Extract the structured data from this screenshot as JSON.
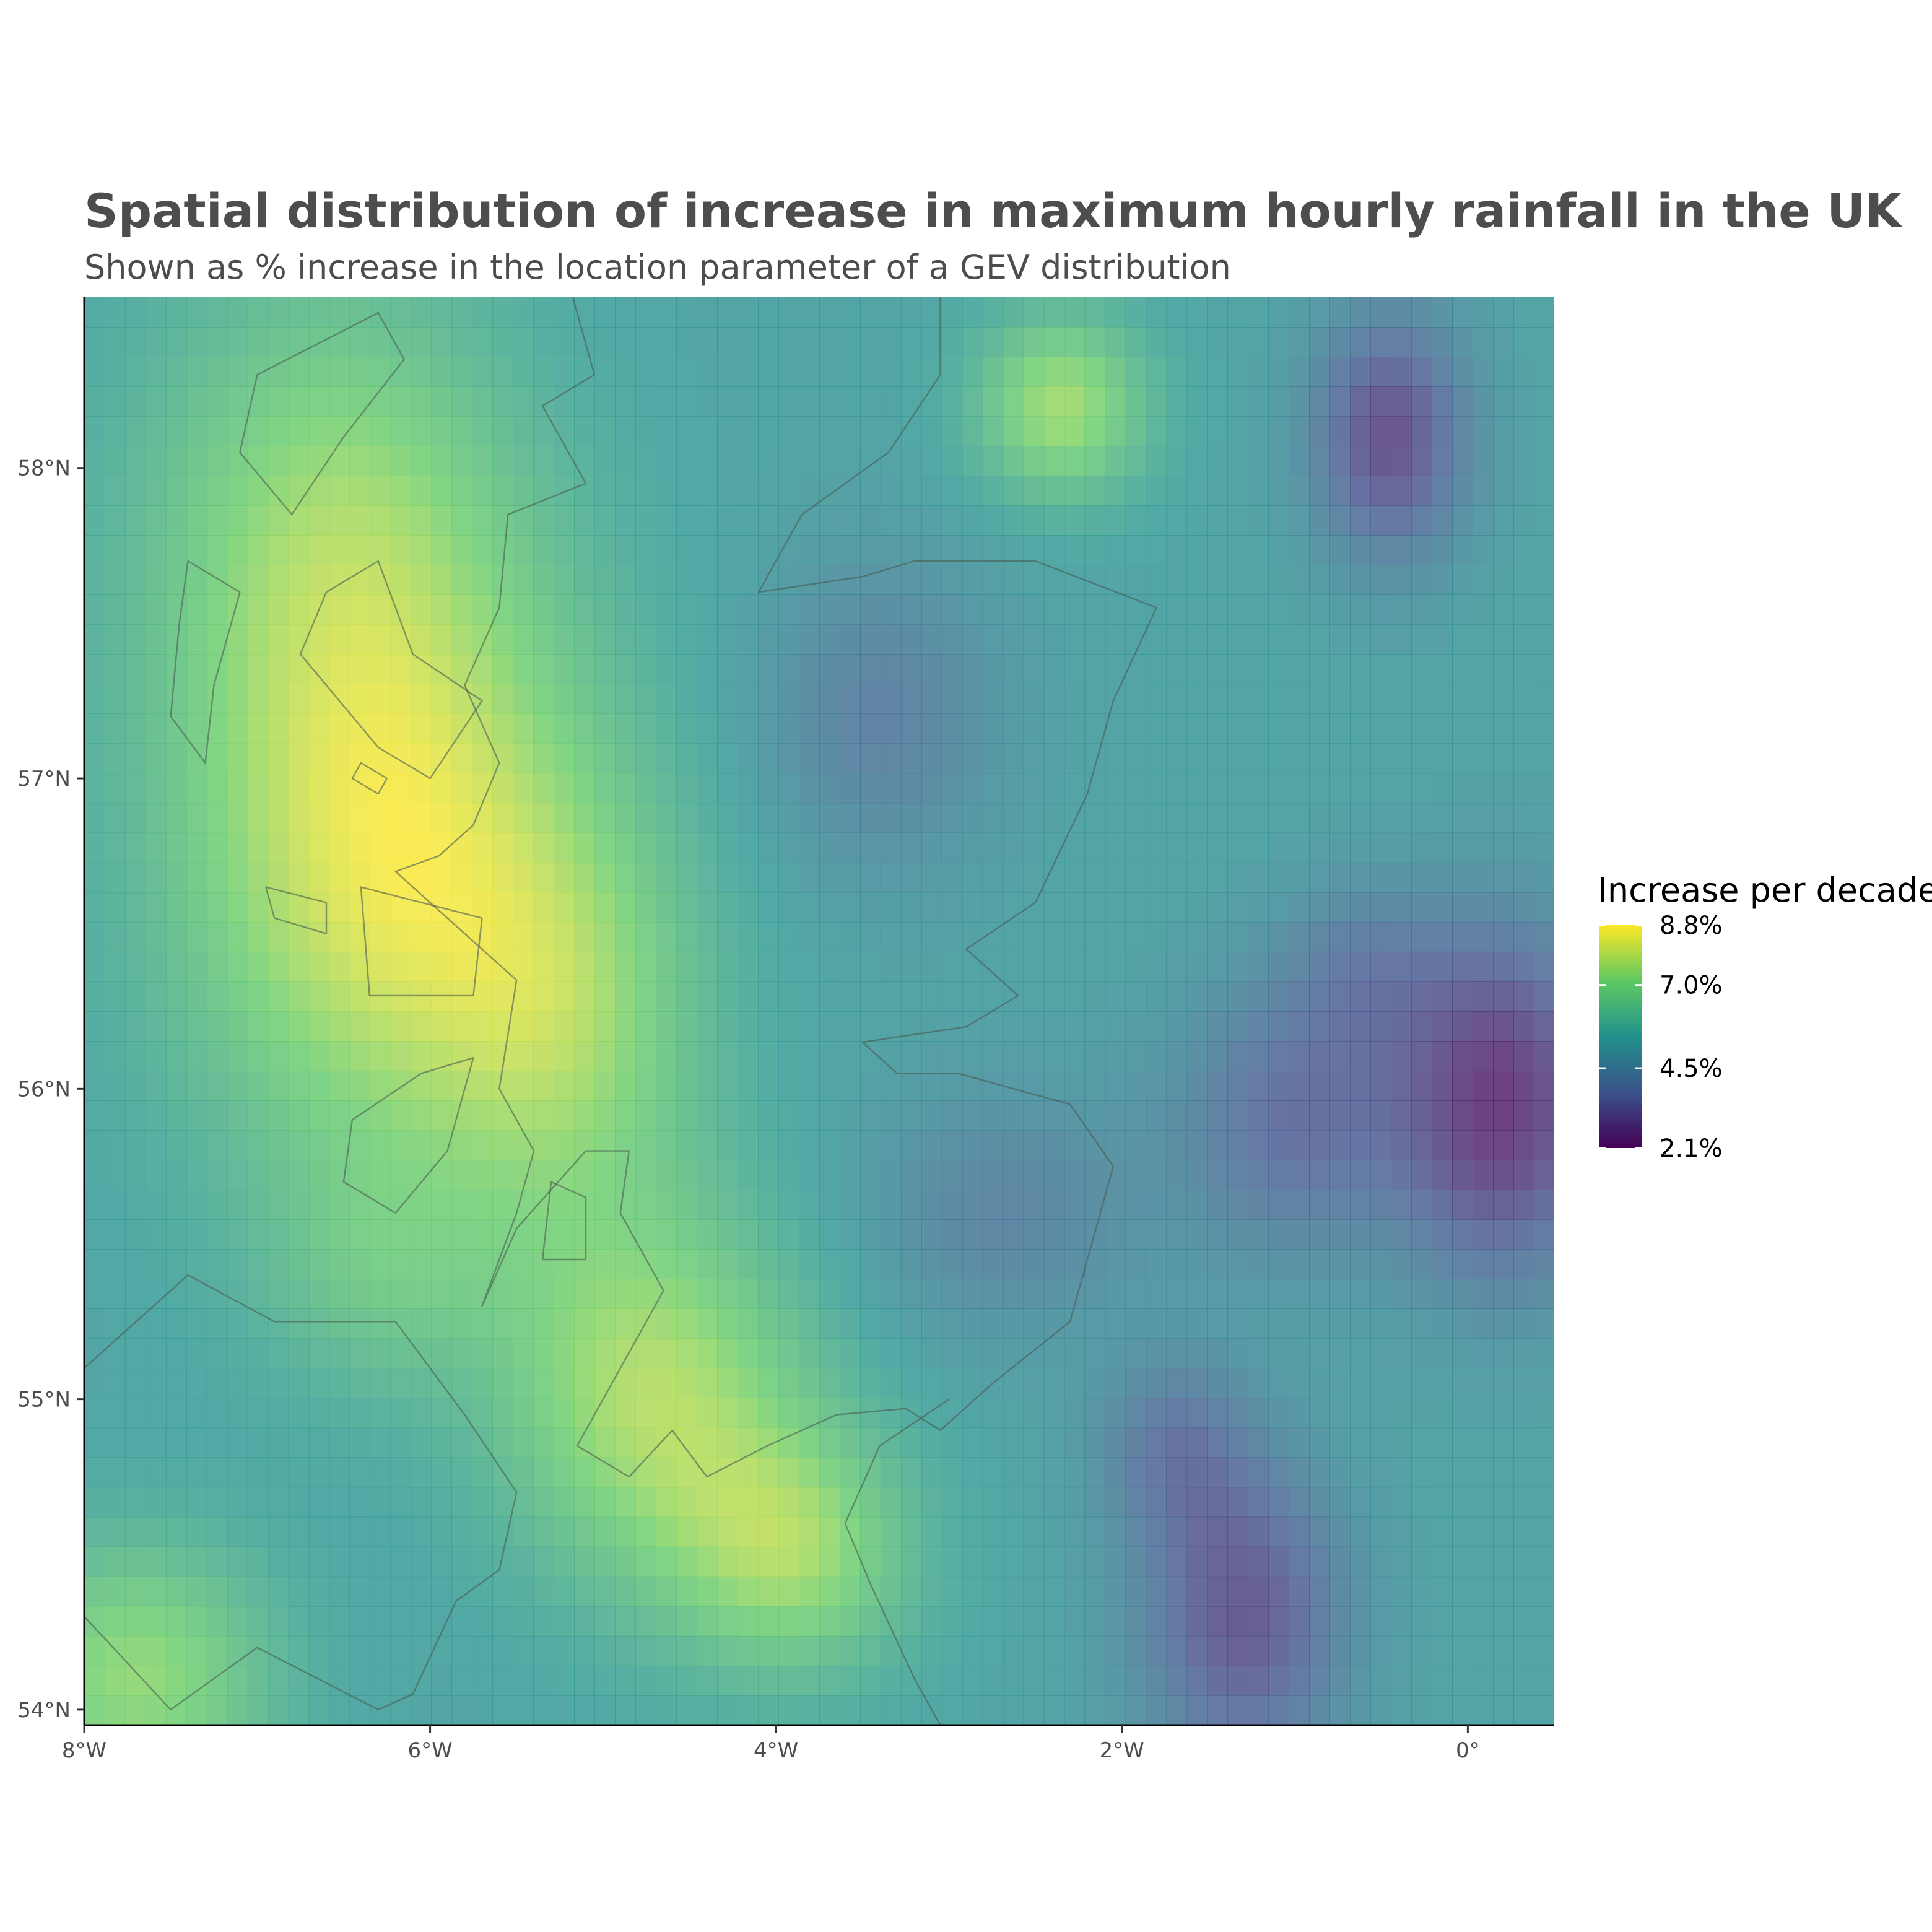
{
  "title": "Spatial distribution of increase in maximum hourly rainfall in the UK",
  "subtitle": "Shown as % increase in the location parameter of a GEV distribution",
  "chart_data": {
    "type": "heatmap",
    "map": "UK raster map of rainfall increase with coastline overlay",
    "xlim": [
      -8,
      0.5
    ],
    "ylim": [
      53.95,
      58.55
    ],
    "x_ticks": [
      {
        "value": -8,
        "label": "8°W"
      },
      {
        "value": -6,
        "label": "6°W"
      },
      {
        "value": -4,
        "label": "4°W"
      },
      {
        "value": -2,
        "label": "2°W"
      },
      {
        "value": 0,
        "label": "0°"
      }
    ],
    "y_ticks": [
      {
        "value": 54,
        "label": "54°N"
      },
      {
        "value": 55,
        "label": "55°N"
      },
      {
        "value": 56,
        "label": "56°N"
      },
      {
        "value": 57,
        "label": "57°N"
      },
      {
        "value": 58,
        "label": "58°N"
      }
    ],
    "legend": {
      "title": "Increase per decade",
      "min": 2.1,
      "max": 8.8,
      "breaks": [
        {
          "value": 8.8,
          "label": "8.8%"
        },
        {
          "value": 7.0,
          "label": "7.0%"
        },
        {
          "value": 4.5,
          "label": "4.5%"
        },
        {
          "value": 2.1,
          "label": "2.1%"
        }
      ],
      "palette": [
        "#440154",
        "#3b528b",
        "#21918c",
        "#5ec962",
        "#fde725"
      ]
    },
    "field": {
      "base": 5.3,
      "peaks": [
        {
          "lon": -6.25,
          "lat": 56.75,
          "amp": 3.1,
          "rx": 1.2,
          "ry": 1.0
        },
        {
          "lon": -6.6,
          "lat": 57.9,
          "amp": 1.6,
          "rx": 1.1,
          "ry": 0.8
        },
        {
          "lon": -4.7,
          "lat": 55.0,
          "amp": 2.4,
          "rx": 0.9,
          "ry": 0.6
        },
        {
          "lon": -7.7,
          "lat": 54.1,
          "amp": 2.1,
          "rx": 0.8,
          "ry": 0.45
        },
        {
          "lon": -3.9,
          "lat": 54.5,
          "amp": 2.0,
          "rx": 0.7,
          "ry": 0.4
        },
        {
          "lon": -2.35,
          "lat": 58.2,
          "amp": 2.3,
          "rx": 0.5,
          "ry": 0.3
        },
        {
          "lon": -5.2,
          "lat": 56.2,
          "amp": 1.6,
          "rx": 0.8,
          "ry": 0.7
        },
        {
          "lon": -6.3,
          "lat": 55.4,
          "amp": 0.9,
          "rx": 0.7,
          "ry": 0.4
        },
        {
          "lon": -0.45,
          "lat": 58.1,
          "amp": -2.4,
          "rx": 0.45,
          "ry": 0.4
        },
        {
          "lon": 0.2,
          "lat": 55.95,
          "amp": -2.9,
          "rx": 0.6,
          "ry": 0.55
        },
        {
          "lon": -1.3,
          "lat": 54.3,
          "amp": -2.2,
          "rx": 0.6,
          "ry": 0.5
        },
        {
          "lon": -1.0,
          "lat": 55.9,
          "amp": -1.6,
          "rx": 0.7,
          "ry": 0.45
        },
        {
          "lon": -3.4,
          "lat": 57.2,
          "amp": -1.1,
          "rx": 0.7,
          "ry": 0.5
        },
        {
          "lon": -2.7,
          "lat": 55.6,
          "amp": -1.0,
          "rx": 0.8,
          "ry": 0.4
        },
        {
          "lon": -1.7,
          "lat": 54.85,
          "amp": -1.2,
          "rx": 0.45,
          "ry": 0.3
        },
        {
          "lon": -0.6,
          "lat": 56.4,
          "amp": -0.9,
          "rx": 0.5,
          "ry": 0.3
        }
      ]
    },
    "coastlines": {
      "scotland_mainland": [
        [
          -5.2,
          58.6
        ],
        [
          -5.05,
          58.3
        ],
        [
          -5.35,
          58.2
        ],
        [
          -5.1,
          57.95
        ],
        [
          -5.55,
          57.85
        ],
        [
          -5.6,
          57.55
        ],
        [
          -5.8,
          57.3
        ],
        [
          -5.6,
          57.05
        ],
        [
          -5.75,
          56.85
        ],
        [
          -5.95,
          56.75
        ],
        [
          -6.2,
          56.7
        ],
        [
          -5.8,
          56.5
        ],
        [
          -5.5,
          56.35
        ],
        [
          -5.6,
          56.0
        ],
        [
          -5.4,
          55.8
        ],
        [
          -5.5,
          55.6
        ],
        [
          -5.7,
          55.3
        ],
        [
          -5.5,
          55.55
        ],
        [
          -5.1,
          55.8
        ],
        [
          -4.85,
          55.8
        ],
        [
          -4.9,
          55.6
        ],
        [
          -4.65,
          55.35
        ],
        [
          -4.95,
          55.05
        ],
        [
          -5.15,
          54.85
        ],
        [
          -4.85,
          54.75
        ],
        [
          -4.6,
          54.9
        ],
        [
          -4.4,
          54.75
        ],
        [
          -4.05,
          54.85
        ],
        [
          -3.65,
          54.95
        ],
        [
          -3.25,
          54.97
        ],
        [
          -3.05,
          54.9
        ],
        [
          -2.75,
          55.05
        ],
        [
          -2.3,
          55.25
        ],
        [
          -2.05,
          55.75
        ],
        [
          -2.3,
          55.95
        ],
        [
          -2.95,
          56.05
        ],
        [
          -3.3,
          56.05
        ],
        [
          -3.5,
          56.15
        ],
        [
          -2.9,
          56.2
        ],
        [
          -2.6,
          56.3
        ],
        [
          -2.9,
          56.45
        ],
        [
          -2.5,
          56.6
        ],
        [
          -2.2,
          56.95
        ],
        [
          -2.05,
          57.25
        ],
        [
          -1.8,
          57.55
        ],
        [
          -2.5,
          57.7
        ],
        [
          -3.2,
          57.7
        ],
        [
          -3.5,
          57.65
        ],
        [
          -4.1,
          57.6
        ],
        [
          -3.85,
          57.85
        ],
        [
          -3.35,
          58.05
        ],
        [
          -3.05,
          58.3
        ],
        [
          -3.05,
          58.55
        ]
      ],
      "ireland_ni": [
        [
          -8.0,
          55.1
        ],
        [
          -7.4,
          55.4
        ],
        [
          -6.9,
          55.25
        ],
        [
          -6.2,
          55.25
        ],
        [
          -5.8,
          54.95
        ],
        [
          -5.5,
          54.7
        ],
        [
          -5.6,
          54.45
        ],
        [
          -5.85,
          54.35
        ],
        [
          -6.1,
          54.05
        ],
        [
          -6.3,
          54.0
        ],
        [
          -7.0,
          54.2
        ],
        [
          -7.5,
          54.0
        ],
        [
          -8.0,
          54.3
        ]
      ],
      "england_nw": [
        [
          -3.0,
          55.0
        ],
        [
          -3.4,
          54.85
        ],
        [
          -3.6,
          54.6
        ],
        [
          -3.45,
          54.4
        ],
        [
          -3.2,
          54.1
        ],
        [
          -3.05,
          53.95
        ]
      ],
      "skye": [
        [
          -6.3,
          57.7
        ],
        [
          -6.1,
          57.4
        ],
        [
          -5.7,
          57.25
        ],
        [
          -6.0,
          57.0
        ],
        [
          -6.3,
          57.1
        ],
        [
          -6.75,
          57.4
        ],
        [
          -6.6,
          57.6
        ]
      ],
      "mull": [
        [
          -6.4,
          56.65
        ],
        [
          -5.7,
          56.55
        ],
        [
          -5.75,
          56.3
        ],
        [
          -6.35,
          56.3
        ]
      ],
      "islay_jura": [
        [
          -6.45,
          55.9
        ],
        [
          -6.05,
          56.05
        ],
        [
          -5.75,
          56.1
        ],
        [
          -5.9,
          55.8
        ],
        [
          -6.2,
          55.6
        ],
        [
          -6.5,
          55.7
        ]
      ],
      "arran": [
        [
          -5.3,
          55.7
        ],
        [
          -5.1,
          55.65
        ],
        [
          -5.1,
          55.45
        ],
        [
          -5.35,
          55.45
        ]
      ],
      "lewis_harris": [
        [
          -6.3,
          58.5
        ],
        [
          -6.15,
          58.35
        ],
        [
          -6.5,
          58.1
        ],
        [
          -6.8,
          57.85
        ],
        [
          -7.1,
          58.05
        ],
        [
          -7.0,
          58.3
        ]
      ],
      "uists": [
        [
          -7.4,
          57.7
        ],
        [
          -7.1,
          57.6
        ],
        [
          -7.25,
          57.3
        ],
        [
          -7.3,
          57.05
        ],
        [
          -7.5,
          57.2
        ],
        [
          -7.45,
          57.5
        ]
      ],
      "tiree_coll": [
        [
          -6.9,
          56.55
        ],
        [
          -6.6,
          56.5
        ],
        [
          -6.6,
          56.6
        ],
        [
          -6.95,
          56.65
        ]
      ],
      "rum_eigg": [
        [
          -6.4,
          57.05
        ],
        [
          -6.25,
          57.0
        ],
        [
          -6.3,
          56.95
        ],
        [
          -6.45,
          57.0
        ]
      ]
    }
  }
}
